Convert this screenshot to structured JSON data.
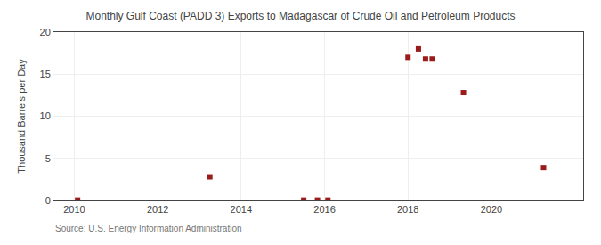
{
  "chart_data": {
    "type": "scatter",
    "title": "Monthly Gulf Coast (PADD 3) Exports to Madagascar of Crude Oil and Petroleum Products",
    "y_label": "Thousand Barrels per Day",
    "annotation": "Source: U.S. Energy Information Administration",
    "x": [
      2010.08,
      2013.25,
      2015.5,
      2015.83,
      2016.08,
      2018.0,
      2018.25,
      2018.42,
      2018.58,
      2019.33,
      2021.25
    ],
    "values": [
      0.04,
      2.8,
      0.04,
      0.04,
      0.04,
      17.0,
      18.0,
      16.8,
      16.8,
      12.8,
      3.9
    ],
    "color": "#9b1a1a",
    "marker": "square",
    "xlim": [
      2009.5,
      2022.2
    ],
    "ylim": [
      0,
      20
    ],
    "xticks": [
      2010,
      2012,
      2014,
      2016,
      2018,
      2020
    ],
    "yticks": [
      0,
      5,
      10,
      15,
      20
    ],
    "grid": true
  }
}
